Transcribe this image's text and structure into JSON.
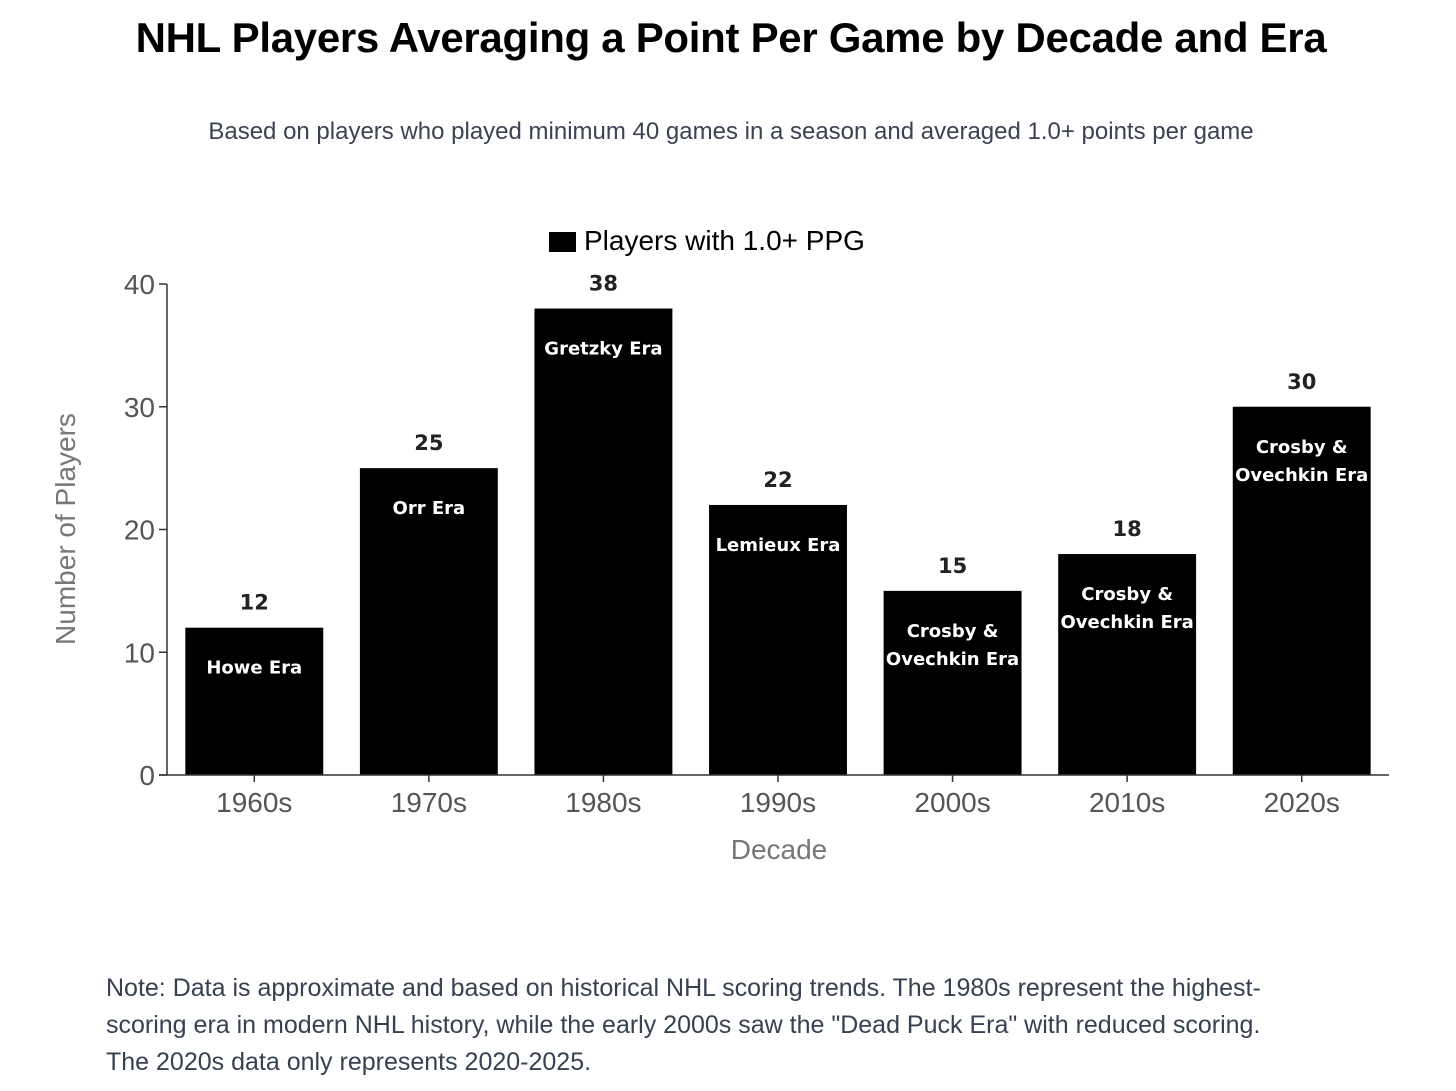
{
  "title": "NHL Players Averaging a Point Per Game by Decade and Era",
  "subtitle": "Based on players who played minimum 40 games in a season and averaged 1.0+ points per game",
  "note": "Note: Data is approximate and based on historical NHL scoring trends. The 1980s represent the highest-scoring era in modern NHL history, while the early 2000s saw the \"Dead Puck Era\" with reduced scoring. The 2020s data only represents 2020-2025.",
  "colors": {
    "bar": "#000000",
    "era_text": "#ffffff",
    "axis": "#333333"
  },
  "chart_data": {
    "type": "bar",
    "categories": [
      "1960s",
      "1970s",
      "1980s",
      "1990s",
      "2000s",
      "2010s",
      "2020s"
    ],
    "series": [
      {
        "name": "Players with 1.0+ PPG",
        "values": [
          12,
          25,
          38,
          22,
          15,
          18,
          30
        ]
      }
    ],
    "era_labels": [
      [
        "Howe Era"
      ],
      [
        "Orr Era"
      ],
      [
        "Gretzky Era"
      ],
      [
        "Lemieux Era"
      ],
      [
        "Crosby &",
        "Ovechkin Era"
      ],
      [
        "Crosby &",
        "Ovechkin Era"
      ],
      [
        "Crosby &",
        "Ovechkin Era"
      ]
    ],
    "xlabel": "Decade",
    "ylabel": "Number of Players",
    "ylim": [
      0,
      40
    ],
    "yticks": [
      0,
      10,
      20,
      30,
      40
    ],
    "legend": "top-center",
    "grid": false
  }
}
